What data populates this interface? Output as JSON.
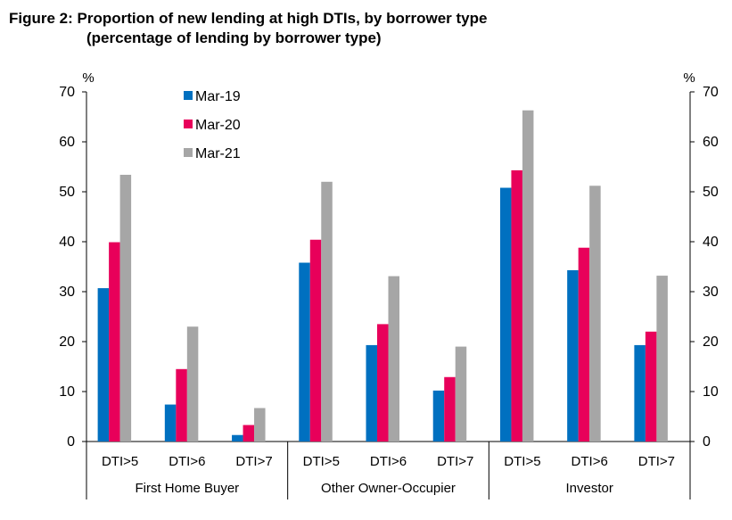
{
  "title_line1": "Figure 2: Proportion of new lending at high DTIs, by borrower type",
  "title_line2": "(percentage of lending by borrower type)",
  "chart_data": {
    "type": "bar",
    "y_unit_left": "%",
    "y_unit_right": "%",
    "ylim": [
      0,
      70
    ],
    "yticks": [
      0,
      10,
      20,
      30,
      40,
      50,
      60,
      70
    ],
    "grid": false,
    "legend_position": "top-left",
    "groups": [
      {
        "label": "First Home Buyer",
        "categories": [
          "DTI>5",
          "DTI>6",
          "DTI>7"
        ]
      },
      {
        "label": "Other Owner-Occupier",
        "categories": [
          "DTI>5",
          "DTI>6",
          "DTI>7"
        ]
      },
      {
        "label": "Investor",
        "categories": [
          "DTI>5",
          "DTI>6",
          "DTI>7"
        ]
      }
    ],
    "series": [
      {
        "name": "Mar-19",
        "color": "#0070C0",
        "values": [
          30.7,
          7.4,
          1.3,
          35.8,
          19.3,
          10.2,
          50.8,
          34.3,
          19.3
        ]
      },
      {
        "name": "Mar-20",
        "color": "#E8005A",
        "values": [
          39.9,
          14.5,
          3.3,
          40.4,
          23.5,
          12.9,
          54.3,
          38.8,
          22.0
        ]
      },
      {
        "name": "Mar-21",
        "color": "#A6A6A6",
        "values": [
          53.4,
          23.0,
          6.7,
          52.0,
          33.1,
          19.0,
          66.3,
          51.2,
          33.2
        ]
      }
    ]
  }
}
